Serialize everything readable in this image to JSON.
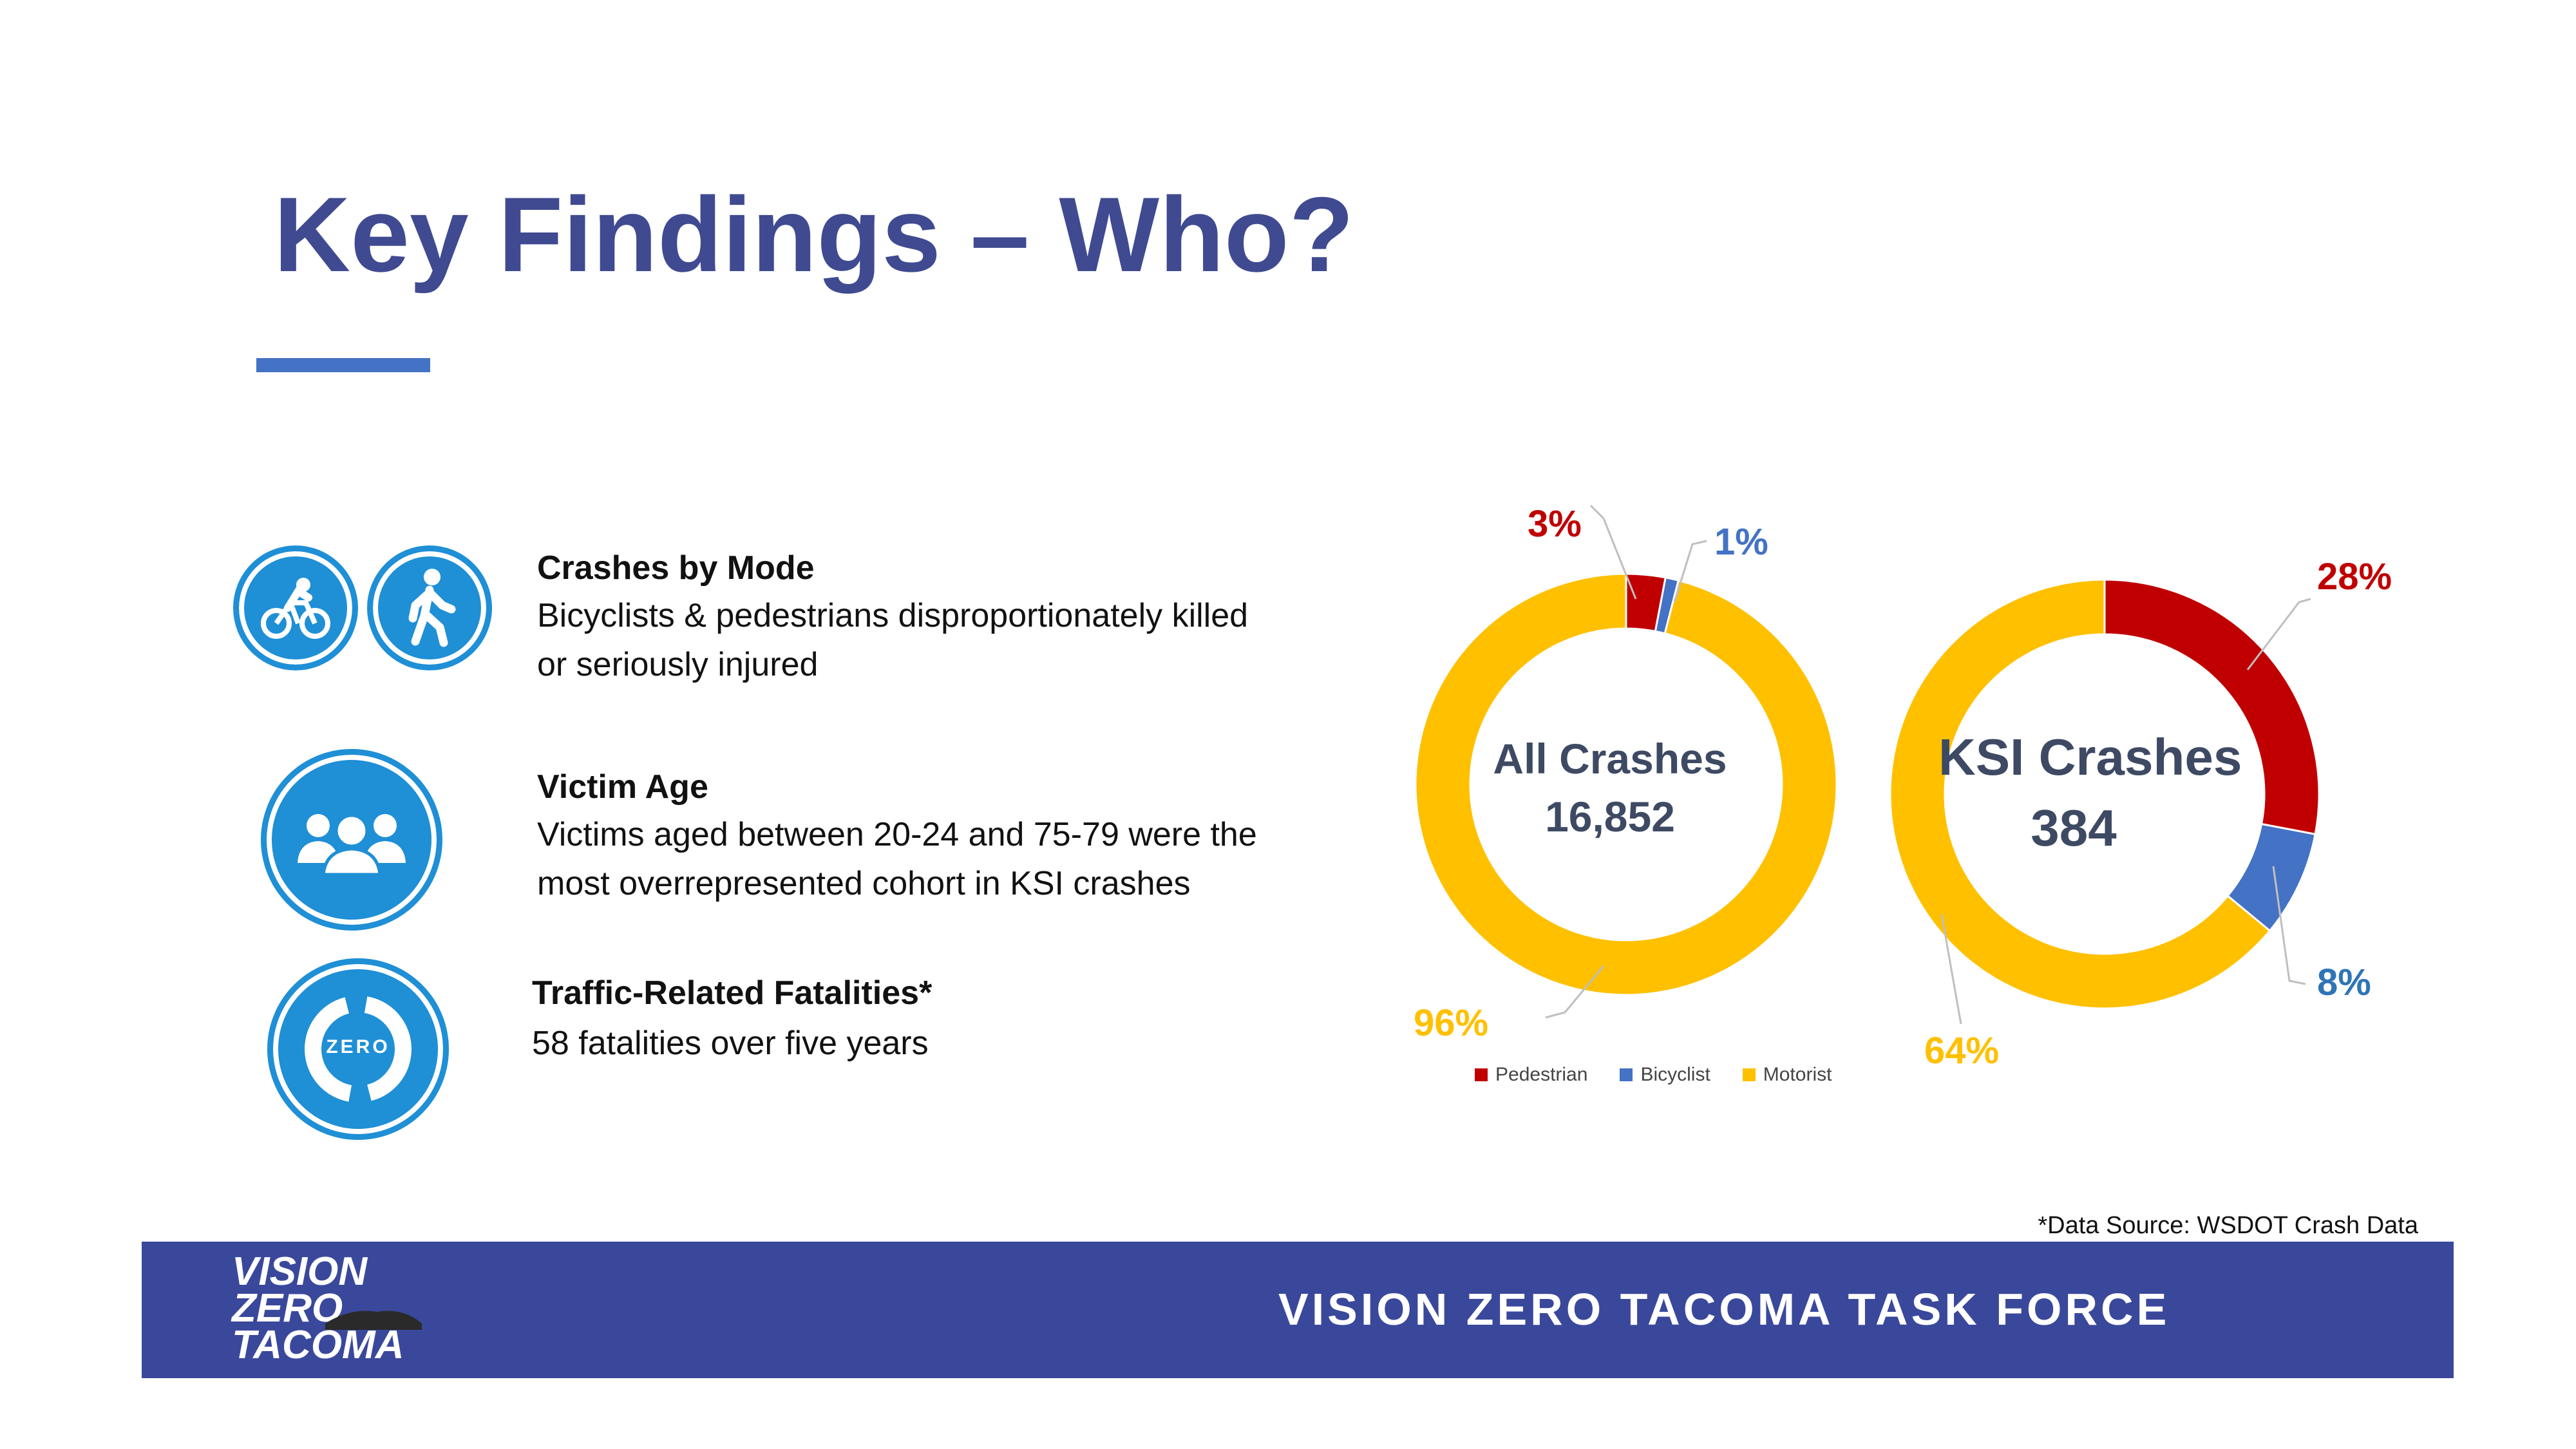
{
  "title": "Key Findings – Who?",
  "findings": [
    {
      "heading": "Crashes by Mode",
      "text": "Bicyclists & pedestrians disproportionately killed or seriously injured"
    },
    {
      "heading": "Victim Age",
      "text": "Victims aged between 20-24 and 75-79 were the most overrepresented cohort in KSI crashes"
    },
    {
      "heading": "Traffic-Related Fatalities*",
      "text": "58 fatalities over five years"
    }
  ],
  "zero_badge": "ZERO",
  "chart_data": [
    {
      "type": "pie",
      "center_label": "All Crashes",
      "center_value": "16,852",
      "categories": [
        "Pedestrian",
        "Bicyclist",
        "Motorist"
      ],
      "values": [
        3,
        1,
        96
      ],
      "labels": [
        "3%",
        "1%",
        "96%"
      ]
    },
    {
      "type": "pie",
      "center_label": "KSI Crashes",
      "center_value": "384",
      "categories": [
        "Pedestrian",
        "Bicyclist",
        "Motorist"
      ],
      "values": [
        28,
        8,
        64
      ],
      "labels": [
        "28%",
        "8%",
        "64%"
      ]
    }
  ],
  "legend": [
    "Pedestrian",
    "Bicyclist",
    "Motorist"
  ],
  "colors": {
    "pedestrian": "#c00000",
    "bicyclist": "#4472c4",
    "motorist": "#ffc000",
    "title": "#3f4a91",
    "footer": "#3a489b",
    "icon": "#1f8fd6"
  },
  "source": "*Data Source: WSDOT Crash Data",
  "footer": {
    "logo_lines": [
      "VISION",
      "ZERO",
      "TACOMA"
    ],
    "title": "VISION ZERO TACOMA TASK FORCE"
  }
}
